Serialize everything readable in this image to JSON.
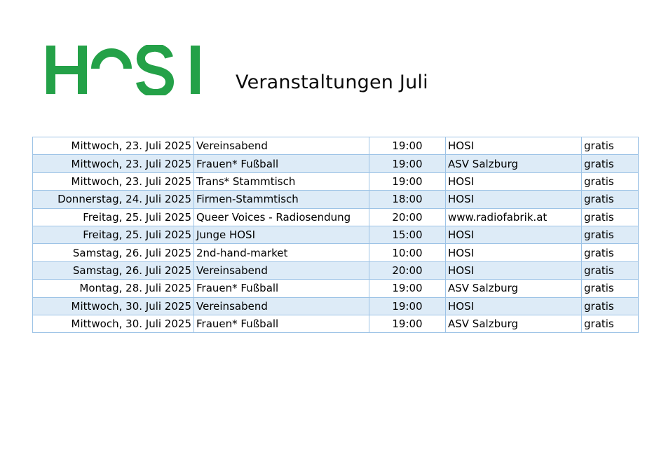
{
  "header": {
    "logo_text": "HOSI",
    "title": "Veranstaltungen Juli"
  },
  "colors": {
    "logo_green": "#24a148",
    "table_border": "#9dc3e6",
    "row_alt": "#ddebf7"
  },
  "events": [
    {
      "date": "Mittwoch, 23. Juli 2025",
      "event": "Vereinsabend",
      "time": "19:00",
      "location": "HOSI",
      "price": "gratis"
    },
    {
      "date": "Mittwoch, 23. Juli 2025",
      "event": "Frauen* Fußball",
      "time": "19:00",
      "location": "ASV Salzburg",
      "price": "gratis"
    },
    {
      "date": "Mittwoch, 23. Juli 2025",
      "event": "Trans* Stammtisch",
      "time": "19:00",
      "location": "HOSI",
      "price": "gratis"
    },
    {
      "date": "Donnerstag, 24. Juli 2025",
      "event": "Firmen-Stammtisch",
      "time": "18:00",
      "location": "HOSI",
      "price": "gratis"
    },
    {
      "date": "Freitag, 25. Juli 2025",
      "event": "Queer Voices - Radiosendung",
      "time": "20:00",
      "location": "www.radiofabrik.at",
      "price": "gratis"
    },
    {
      "date": "Freitag, 25. Juli 2025",
      "event": "Junge HOSI",
      "time": "15:00",
      "location": "HOSI",
      "price": "gratis"
    },
    {
      "date": "Samstag, 26. Juli 2025",
      "event": "2nd-hand-market",
      "time": "10:00",
      "location": "HOSI",
      "price": "gratis"
    },
    {
      "date": "Samstag, 26. Juli 2025",
      "event": "Vereinsabend",
      "time": "20:00",
      "location": "HOSI",
      "price": "gratis"
    },
    {
      "date": "Montag, 28. Juli 2025",
      "event": "Frauen* Fußball",
      "time": "19:00",
      "location": "ASV Salzburg",
      "price": "gratis"
    },
    {
      "date": "Mittwoch, 30. Juli 2025",
      "event": "Vereinsabend",
      "time": "19:00",
      "location": "HOSI",
      "price": "gratis"
    },
    {
      "date": "Mittwoch, 30. Juli 2025",
      "event": "Frauen* Fußball",
      "time": "19:00",
      "location": "ASV Salzburg",
      "price": "gratis"
    }
  ]
}
